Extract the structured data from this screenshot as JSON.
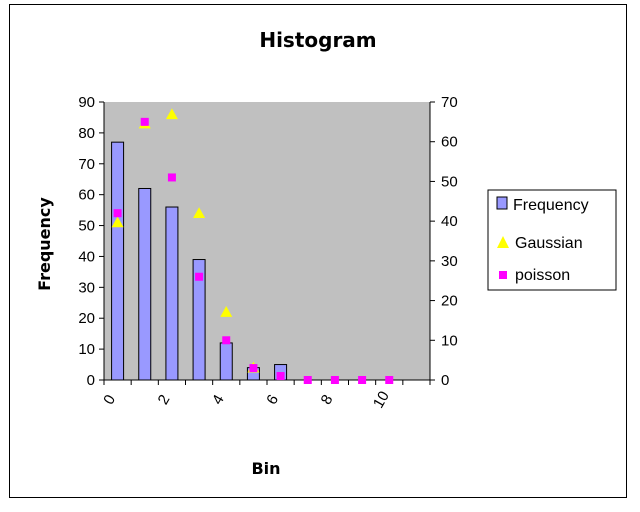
{
  "chart_data": {
    "type": "bar",
    "title": "Histogram",
    "xlabel": "Bin",
    "ylabel": "Frequency",
    "y2label": "",
    "ylim": [
      0,
      90
    ],
    "y2lim": [
      0,
      70
    ],
    "yticks": [
      "0",
      "10",
      "20",
      "30",
      "40",
      "50",
      "60",
      "70",
      "80",
      "90"
    ],
    "y2ticks": [
      "0",
      "10",
      "20",
      "30",
      "40",
      "50",
      "60",
      "70"
    ],
    "xticks": [
      "0",
      "2",
      "4",
      "6",
      "8",
      "10"
    ],
    "grid": false,
    "legend_position": "right",
    "plot_background": "#c0c0c0",
    "series": [
      {
        "name": "Frequency",
        "type": "bar",
        "axis": "left",
        "color": "#9999ff",
        "x": [
          0.5,
          1.5,
          2.5,
          3.5,
          4.5,
          5.5,
          6.5,
          7.5,
          8.5,
          9.5,
          10.5
        ],
        "values": [
          77,
          62,
          56,
          39,
          12,
          4,
          5,
          0,
          0,
          0,
          0
        ]
      },
      {
        "name": "Gaussian",
        "type": "scatter",
        "marker": "triangle",
        "axis": "left",
        "color": "#ffff00",
        "x": [
          0.5,
          1.5,
          2.5,
          3.5,
          4.5,
          5.5
        ],
        "values": [
          51,
          83,
          86,
          54,
          22,
          4
        ]
      },
      {
        "name": "poisson",
        "type": "scatter",
        "marker": "square",
        "axis": "right",
        "color": "#ff00ff",
        "x": [
          0.5,
          1.5,
          2.5,
          3.5,
          4.5,
          5.5,
          6.5,
          7.5,
          8.5,
          9.5,
          10.5
        ],
        "values": [
          42,
          65,
          51,
          26,
          10,
          3,
          1,
          0,
          0,
          0,
          0
        ]
      }
    ]
  }
}
